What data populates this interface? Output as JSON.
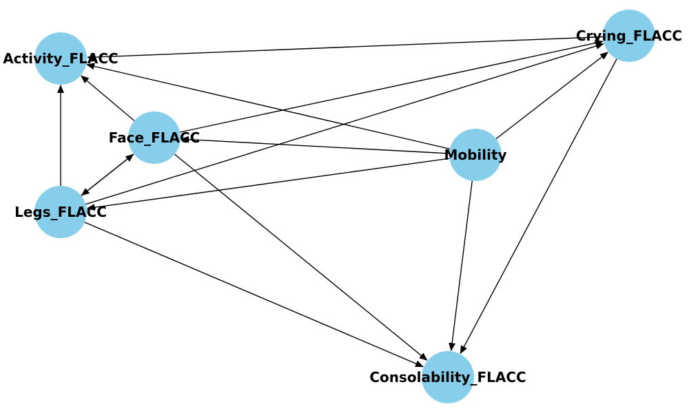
{
  "diagram": {
    "type": "directed-graph",
    "node_color": "#87CEEB",
    "edge_color": "#000000",
    "label_color": "#000000",
    "nodes": [
      {
        "id": "activity",
        "label": "Activity_FLACC"
      },
      {
        "id": "crying",
        "label": "Crying_FLACC"
      },
      {
        "id": "face",
        "label": "Face_FLACC"
      },
      {
        "id": "mobility",
        "label": "Mobility"
      },
      {
        "id": "legs",
        "label": "Legs_FLACC"
      },
      {
        "id": "consolability",
        "label": "Consolability_FLACC"
      }
    ],
    "edges": [
      {
        "from": "crying",
        "to": "activity"
      },
      {
        "from": "crying",
        "to": "consolability"
      },
      {
        "from": "face",
        "to": "activity"
      },
      {
        "from": "face",
        "to": "crying"
      },
      {
        "from": "face",
        "to": "legs"
      },
      {
        "from": "face",
        "to": "consolability"
      },
      {
        "from": "mobility",
        "to": "activity"
      },
      {
        "from": "mobility",
        "to": "crying"
      },
      {
        "from": "mobility",
        "to": "face"
      },
      {
        "from": "mobility",
        "to": "legs"
      },
      {
        "from": "mobility",
        "to": "consolability"
      },
      {
        "from": "legs",
        "to": "activity"
      },
      {
        "from": "legs",
        "to": "crying"
      },
      {
        "from": "legs",
        "to": "face"
      },
      {
        "from": "legs",
        "to": "consolability"
      }
    ]
  }
}
